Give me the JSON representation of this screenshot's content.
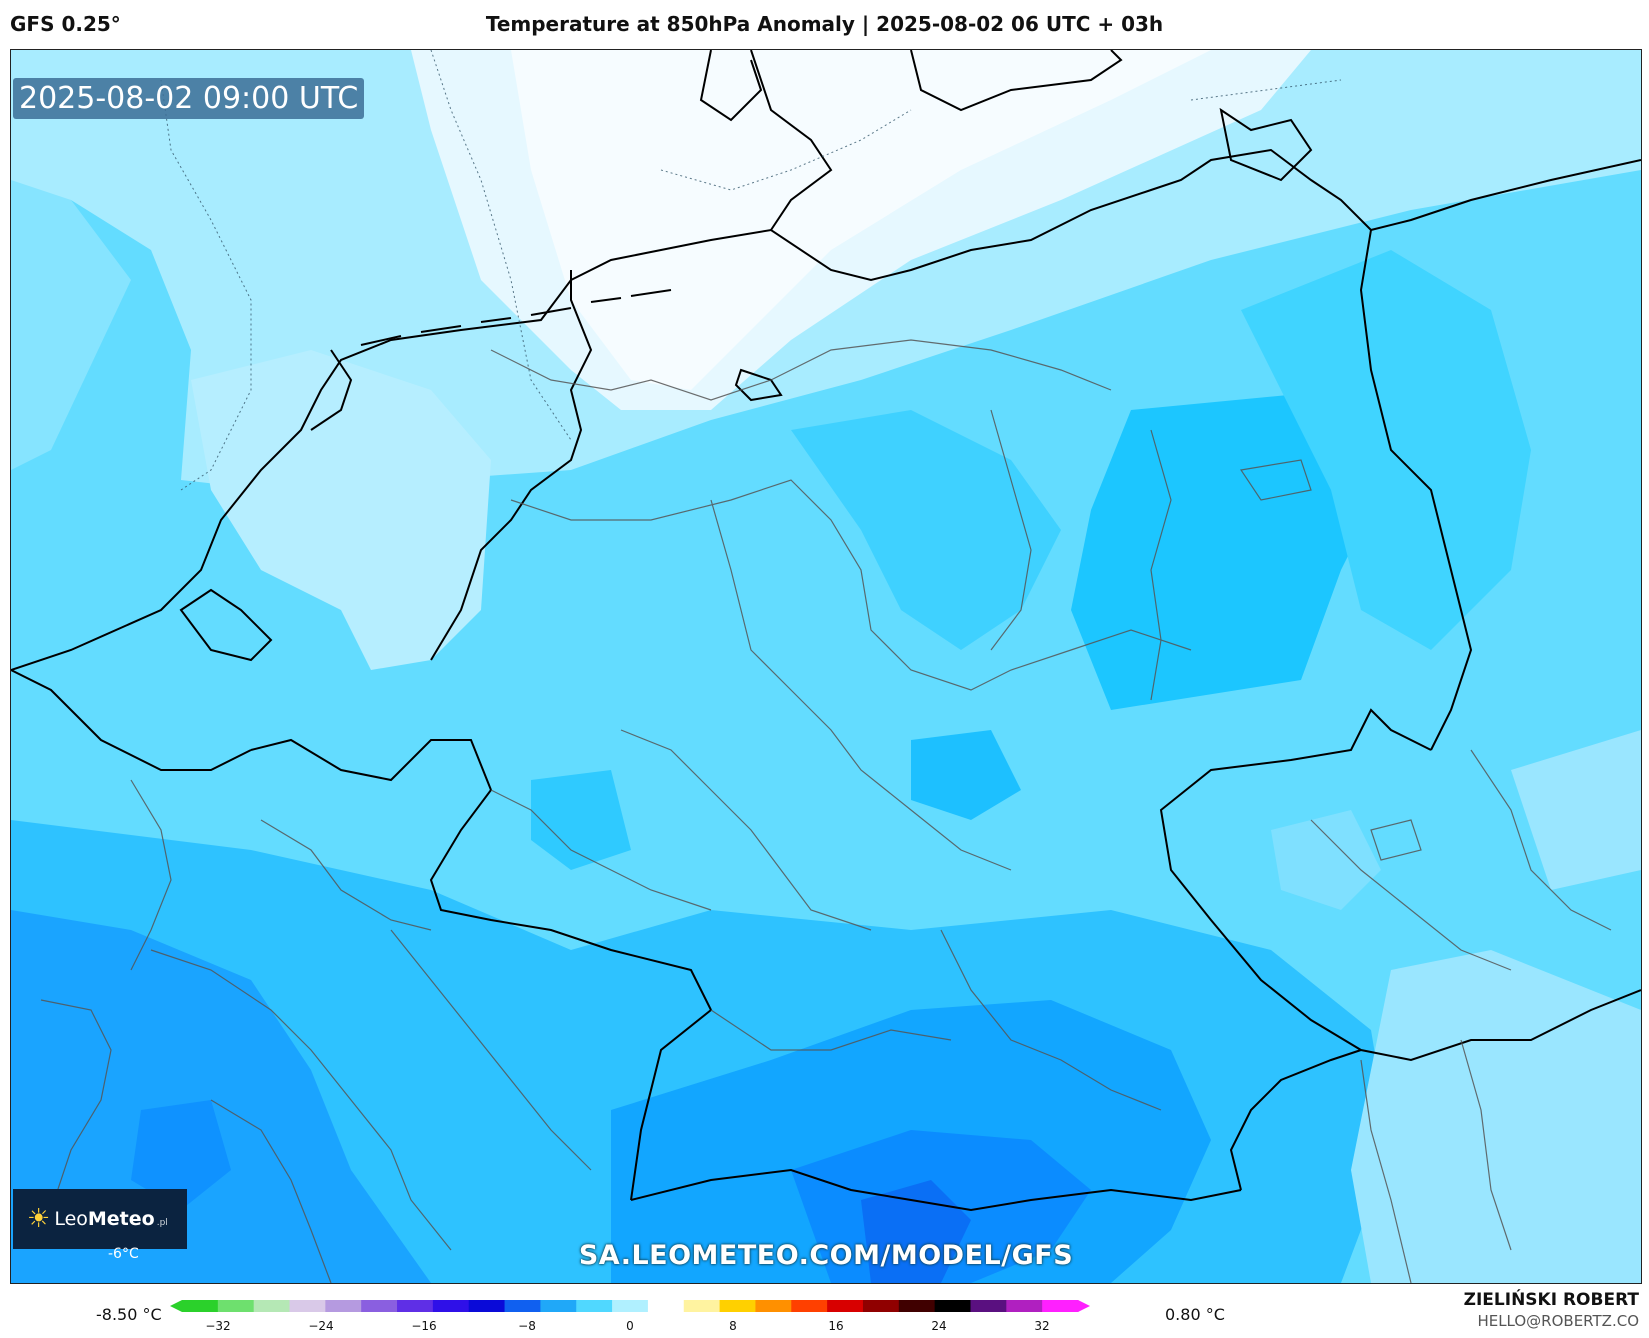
{
  "header": {
    "model": "GFS 0.25°",
    "title": "Temperature at 850hPa Anomaly | 2025-08-02 06 UTC + 03h"
  },
  "map": {
    "timestamp": "2025-08-02 09:00 UTC",
    "site_url": "SA.LEOMETEO.COM/MODEL/GFS",
    "isoline_label": "-6°C",
    "logo": {
      "name_light": "Leo",
      "name_bold": "Meteo",
      "suffix": ".pl",
      "icon": "sun-icon"
    }
  },
  "legend": {
    "min_label": "-8.50 °C",
    "max_label": "0.80 °C",
    "ticks": [
      "−32",
      "−24",
      "−16",
      "−8",
      "0",
      "8",
      "16",
      "24",
      "32"
    ],
    "colors": [
      "#2bd12b",
      "#6ee06e",
      "#b5e8b5",
      "#d9c9e8",
      "#b59ae0",
      "#8a5fe0",
      "#5f2fe6",
      "#2f10e8",
      "#0a0ad8",
      "#1060f0",
      "#20a8f8",
      "#50d8ff",
      "#b0f0ff",
      "#ffffff",
      "#fff3a0",
      "#ffd000",
      "#ff9000",
      "#ff4000",
      "#d80000",
      "#900000",
      "#400000",
      "#000000",
      "#5a1080",
      "#b020c0",
      "#ff20ff"
    ]
  },
  "credits": {
    "author": "ZIELIŃSKI ROBERT",
    "email": "HELLO@ROBERTZ.CO"
  }
}
